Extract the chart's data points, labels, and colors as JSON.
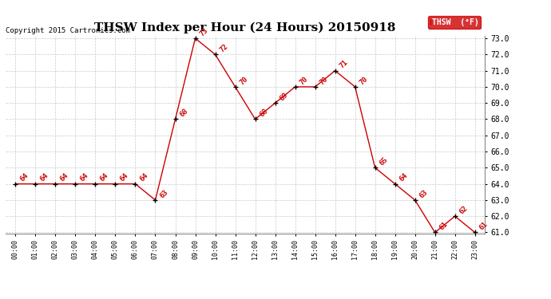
{
  "title": "THSW Index per Hour (24 Hours) 20150918",
  "copyright": "Copyright 2015 Cartronics.com",
  "legend_label": "THSW  (°F)",
  "hours": [
    0,
    1,
    2,
    3,
    4,
    5,
    6,
    7,
    8,
    9,
    10,
    11,
    12,
    13,
    14,
    15,
    16,
    17,
    18,
    19,
    20,
    21,
    22,
    23
  ],
  "values": [
    64,
    64,
    64,
    64,
    64,
    64,
    64,
    63,
    68,
    73,
    72,
    70,
    68,
    69,
    70,
    70,
    71,
    70,
    65,
    64,
    63,
    61,
    62,
    61
  ],
  "ylim_min": 61.0,
  "ylim_max": 73.0,
  "ytick_step": 1.0,
  "line_color": "#cc0000",
  "marker_color": "#000000",
  "label_color": "#cc0000",
  "background_color": "#ffffff",
  "grid_color": "#bbbbbb",
  "title_fontsize": 11,
  "copyright_fontsize": 6.5,
  "label_fontsize": 6.5,
  "legend_bg": "#cc0000",
  "legend_text_color": "#ffffff",
  "ytick_fontsize": 7,
  "xtick_fontsize": 6
}
